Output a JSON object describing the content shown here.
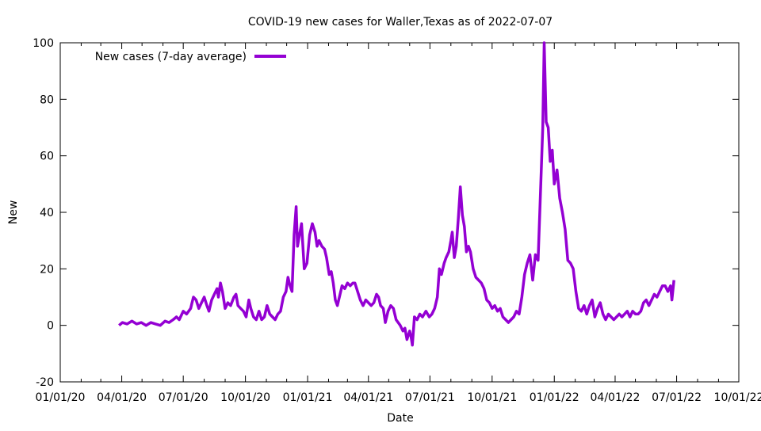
{
  "chart_data": {
    "type": "line",
    "title": "COVID-19 new cases for Waller,Texas as of 2022-07-07",
    "xlabel": "Date",
    "ylabel": "New",
    "ylim": [
      -20,
      100
    ],
    "xlim": [
      "2020-01-01",
      "2022-10-01"
    ],
    "yticks": [
      -20,
      0,
      20,
      40,
      60,
      80,
      100
    ],
    "xticks": [
      {
        "date": "2020-01-01",
        "label": "01/01/20"
      },
      {
        "date": "2020-04-01",
        "label": "04/01/20"
      },
      {
        "date": "2020-07-01",
        "label": "07/01/20"
      },
      {
        "date": "2020-10-01",
        "label": "10/01/20"
      },
      {
        "date": "2021-01-01",
        "label": "01/01/21"
      },
      {
        "date": "2021-04-01",
        "label": "04/01/21"
      },
      {
        "date": "2021-07-01",
        "label": "07/01/21"
      },
      {
        "date": "2021-10-01",
        "label": "10/01/21"
      },
      {
        "date": "2022-01-01",
        "label": "01/01/22"
      },
      {
        "date": "2022-04-01",
        "label": "04/01/22"
      },
      {
        "date": "2022-07-01",
        "label": "07/01/22"
      },
      {
        "date": "2022-10-01",
        "label": "10/01/22"
      }
    ],
    "grid": false,
    "legend": "top-left",
    "series": [
      {
        "name": "New cases (7-day average)",
        "color": "#9400d3",
        "points": [
          [
            "2020-03-28",
            0
          ],
          [
            "2020-04-02",
            1
          ],
          [
            "2020-04-09",
            0.5
          ],
          [
            "2020-04-16",
            1.5
          ],
          [
            "2020-04-23",
            0.5
          ],
          [
            "2020-04-30",
            1
          ],
          [
            "2020-05-07",
            0
          ],
          [
            "2020-05-14",
            1
          ],
          [
            "2020-05-21",
            0.5
          ],
          [
            "2020-05-28",
            0
          ],
          [
            "2020-06-04",
            1.5
          ],
          [
            "2020-06-10",
            1
          ],
          [
            "2020-06-16",
            2
          ],
          [
            "2020-06-21",
            3
          ],
          [
            "2020-06-25",
            2
          ],
          [
            "2020-07-01",
            5
          ],
          [
            "2020-07-06",
            4
          ],
          [
            "2020-07-12",
            6
          ],
          [
            "2020-07-16",
            10
          ],
          [
            "2020-07-20",
            9
          ],
          [
            "2020-07-24",
            6
          ],
          [
            "2020-07-28",
            8
          ],
          [
            "2020-08-01",
            10
          ],
          [
            "2020-08-05",
            7
          ],
          [
            "2020-08-08",
            5
          ],
          [
            "2020-08-12",
            9
          ],
          [
            "2020-08-16",
            11
          ],
          [
            "2020-08-20",
            13
          ],
          [
            "2020-08-22",
            10
          ],
          [
            "2020-08-25",
            15
          ],
          [
            "2020-08-28",
            12
          ],
          [
            "2020-09-01",
            6
          ],
          [
            "2020-09-05",
            8
          ],
          [
            "2020-09-09",
            7
          ],
          [
            "2020-09-14",
            10
          ],
          [
            "2020-09-17",
            11
          ],
          [
            "2020-09-20",
            7
          ],
          [
            "2020-09-24",
            6
          ],
          [
            "2020-09-28",
            5
          ],
          [
            "2020-10-02",
            3
          ],
          [
            "2020-10-06",
            9
          ],
          [
            "2020-10-09",
            6
          ],
          [
            "2020-10-13",
            3
          ],
          [
            "2020-10-17",
            2
          ],
          [
            "2020-10-21",
            5
          ],
          [
            "2020-10-25",
            2
          ],
          [
            "2020-10-29",
            3
          ],
          [
            "2020-11-02",
            7
          ],
          [
            "2020-11-06",
            4
          ],
          [
            "2020-11-10",
            3
          ],
          [
            "2020-11-14",
            2
          ],
          [
            "2020-11-18",
            4
          ],
          [
            "2020-11-22",
            5
          ],
          [
            "2020-11-26",
            10
          ],
          [
            "2020-11-30",
            12
          ],
          [
            "2020-12-03",
            17
          ],
          [
            "2020-12-06",
            14
          ],
          [
            "2020-12-09",
            12
          ],
          [
            "2020-12-12",
            32
          ],
          [
            "2020-12-15",
            42
          ],
          [
            "2020-12-17",
            28
          ],
          [
            "2020-12-20",
            32
          ],
          [
            "2020-12-23",
            36
          ],
          [
            "2020-12-27",
            20
          ],
          [
            "2020-12-31",
            22
          ],
          [
            "2021-01-04",
            32
          ],
          [
            "2021-01-08",
            36
          ],
          [
            "2021-01-12",
            33
          ],
          [
            "2021-01-15",
            28
          ],
          [
            "2021-01-18",
            30
          ],
          [
            "2021-01-22",
            28
          ],
          [
            "2021-01-26",
            27
          ],
          [
            "2021-01-29",
            24
          ],
          [
            "2021-02-02",
            18
          ],
          [
            "2021-02-05",
            19
          ],
          [
            "2021-02-08",
            15
          ],
          [
            "2021-02-11",
            9
          ],
          [
            "2021-02-14",
            7
          ],
          [
            "2021-02-18",
            11
          ],
          [
            "2021-02-21",
            14
          ],
          [
            "2021-02-25",
            13
          ],
          [
            "2021-03-01",
            15
          ],
          [
            "2021-03-05",
            14
          ],
          [
            "2021-03-09",
            15
          ],
          [
            "2021-03-12",
            15
          ],
          [
            "2021-03-16",
            12
          ],
          [
            "2021-03-20",
            9
          ],
          [
            "2021-03-24",
            7
          ],
          [
            "2021-03-28",
            9
          ],
          [
            "2021-04-01",
            8
          ],
          [
            "2021-04-05",
            7
          ],
          [
            "2021-04-09",
            8
          ],
          [
            "2021-04-13",
            11
          ],
          [
            "2021-04-16",
            10
          ],
          [
            "2021-04-19",
            7
          ],
          [
            "2021-04-23",
            6
          ],
          [
            "2021-04-26",
            1
          ],
          [
            "2021-04-30",
            5
          ],
          [
            "2021-05-04",
            7
          ],
          [
            "2021-05-08",
            6
          ],
          [
            "2021-05-12",
            2
          ],
          [
            "2021-05-15",
            1
          ],
          [
            "2021-05-18",
            0
          ],
          [
            "2021-05-22",
            -2
          ],
          [
            "2021-05-25",
            -1
          ],
          [
            "2021-05-28",
            -5
          ],
          [
            "2021-06-01",
            -2
          ],
          [
            "2021-06-03",
            -4
          ],
          [
            "2021-06-05",
            -7
          ],
          [
            "2021-06-08",
            3
          ],
          [
            "2021-06-12",
            2
          ],
          [
            "2021-06-16",
            4
          ],
          [
            "2021-06-20",
            3
          ],
          [
            "2021-06-25",
            5
          ],
          [
            "2021-06-30",
            3
          ],
          [
            "2021-07-04",
            4
          ],
          [
            "2021-07-08",
            6
          ],
          [
            "2021-07-12",
            10
          ],
          [
            "2021-07-15",
            20
          ],
          [
            "2021-07-18",
            18
          ],
          [
            "2021-07-22",
            22
          ],
          [
            "2021-07-25",
            24
          ],
          [
            "2021-07-29",
            26
          ],
          [
            "2021-08-01",
            30
          ],
          [
            "2021-08-03",
            33
          ],
          [
            "2021-08-06",
            24
          ],
          [
            "2021-08-09",
            28
          ],
          [
            "2021-08-12",
            38
          ],
          [
            "2021-08-15",
            49
          ],
          [
            "2021-08-18",
            39
          ],
          [
            "2021-08-21",
            35
          ],
          [
            "2021-08-24",
            26
          ],
          [
            "2021-08-27",
            28
          ],
          [
            "2021-08-30",
            26
          ],
          [
            "2021-09-03",
            20
          ],
          [
            "2021-09-07",
            17
          ],
          [
            "2021-09-11",
            16
          ],
          [
            "2021-09-15",
            15
          ],
          [
            "2021-09-19",
            13
          ],
          [
            "2021-09-23",
            9
          ],
          [
            "2021-09-27",
            8
          ],
          [
            "2021-10-01",
            6
          ],
          [
            "2021-10-05",
            7
          ],
          [
            "2021-10-09",
            5
          ],
          [
            "2021-10-13",
            6
          ],
          [
            "2021-10-17",
            3
          ],
          [
            "2021-10-21",
            2
          ],
          [
            "2021-10-25",
            1
          ],
          [
            "2021-10-29",
            2
          ],
          [
            "2021-11-02",
            3
          ],
          [
            "2021-11-06",
            5
          ],
          [
            "2021-11-10",
            4
          ],
          [
            "2021-11-14",
            10
          ],
          [
            "2021-11-18",
            18
          ],
          [
            "2021-11-22",
            22
          ],
          [
            "2021-11-26",
            25
          ],
          [
            "2021-11-30",
            16
          ],
          [
            "2021-12-04",
            25
          ],
          [
            "2021-12-08",
            23
          ],
          [
            "2021-12-12",
            50
          ],
          [
            "2021-12-15",
            70
          ],
          [
            "2021-12-17",
            100
          ],
          [
            "2021-12-20",
            72
          ],
          [
            "2021-12-23",
            70
          ],
          [
            "2021-12-26",
            58
          ],
          [
            "2021-12-29",
            62
          ],
          [
            "2022-01-01",
            50
          ],
          [
            "2022-01-05",
            55
          ],
          [
            "2022-01-09",
            45
          ],
          [
            "2022-01-13",
            40
          ],
          [
            "2022-01-17",
            34
          ],
          [
            "2022-01-21",
            23
          ],
          [
            "2022-01-25",
            22
          ],
          [
            "2022-01-29",
            20
          ],
          [
            "2022-02-02",
            12
          ],
          [
            "2022-02-06",
            6
          ],
          [
            "2022-02-10",
            5
          ],
          [
            "2022-02-14",
            7
          ],
          [
            "2022-02-18",
            4
          ],
          [
            "2022-02-22",
            7
          ],
          [
            "2022-02-26",
            9
          ],
          [
            "2022-03-02",
            3
          ],
          [
            "2022-03-06",
            6
          ],
          [
            "2022-03-10",
            8
          ],
          [
            "2022-03-14",
            4
          ],
          [
            "2022-03-18",
            2
          ],
          [
            "2022-03-22",
            4
          ],
          [
            "2022-03-26",
            3
          ],
          [
            "2022-03-30",
            2
          ],
          [
            "2022-04-03",
            3
          ],
          [
            "2022-04-07",
            4
          ],
          [
            "2022-04-11",
            3
          ],
          [
            "2022-04-15",
            4
          ],
          [
            "2022-04-19",
            5
          ],
          [
            "2022-04-23",
            3
          ],
          [
            "2022-04-27",
            5
          ],
          [
            "2022-05-01",
            4
          ],
          [
            "2022-05-05",
            4
          ],
          [
            "2022-05-09",
            5
          ],
          [
            "2022-05-13",
            8
          ],
          [
            "2022-05-17",
            9
          ],
          [
            "2022-05-21",
            7
          ],
          [
            "2022-05-25",
            9
          ],
          [
            "2022-05-29",
            11
          ],
          [
            "2022-06-02",
            10
          ],
          [
            "2022-06-06",
            12
          ],
          [
            "2022-06-10",
            14
          ],
          [
            "2022-06-14",
            14
          ],
          [
            "2022-06-18",
            12
          ],
          [
            "2022-06-22",
            14
          ],
          [
            "2022-06-24",
            9
          ],
          [
            "2022-06-27",
            16
          ]
        ]
      }
    ]
  }
}
